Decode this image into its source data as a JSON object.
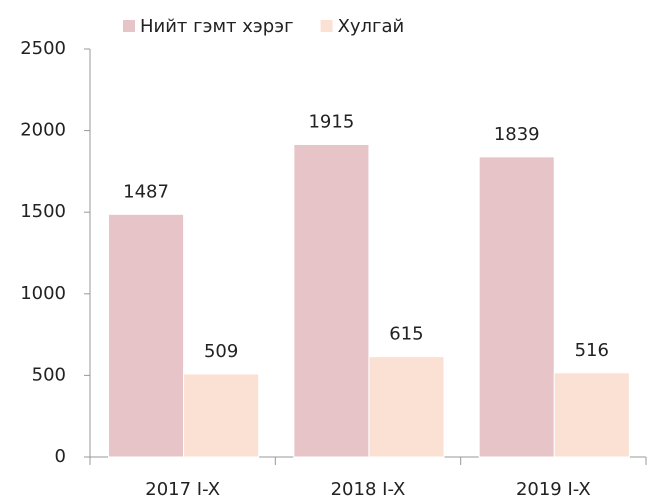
{
  "chart_data": {
    "type": "bar",
    "categories": [
      "2017 I-X",
      "2018 I-X",
      "2019 I-X"
    ],
    "series": [
      {
        "name": "Нийт гэмт хэрэг",
        "color": "#e6c4c8",
        "values": [
          1487,
          1915,
          1839
        ]
      },
      {
        "name": "Хулгай",
        "color": "#fbe1d3",
        "values": [
          509,
          615,
          516
        ]
      }
    ],
    "ylim": [
      0,
      2500
    ],
    "yticks": [
      0,
      500,
      1000,
      1500,
      2000,
      2500
    ],
    "grid": false,
    "legend": "top"
  }
}
